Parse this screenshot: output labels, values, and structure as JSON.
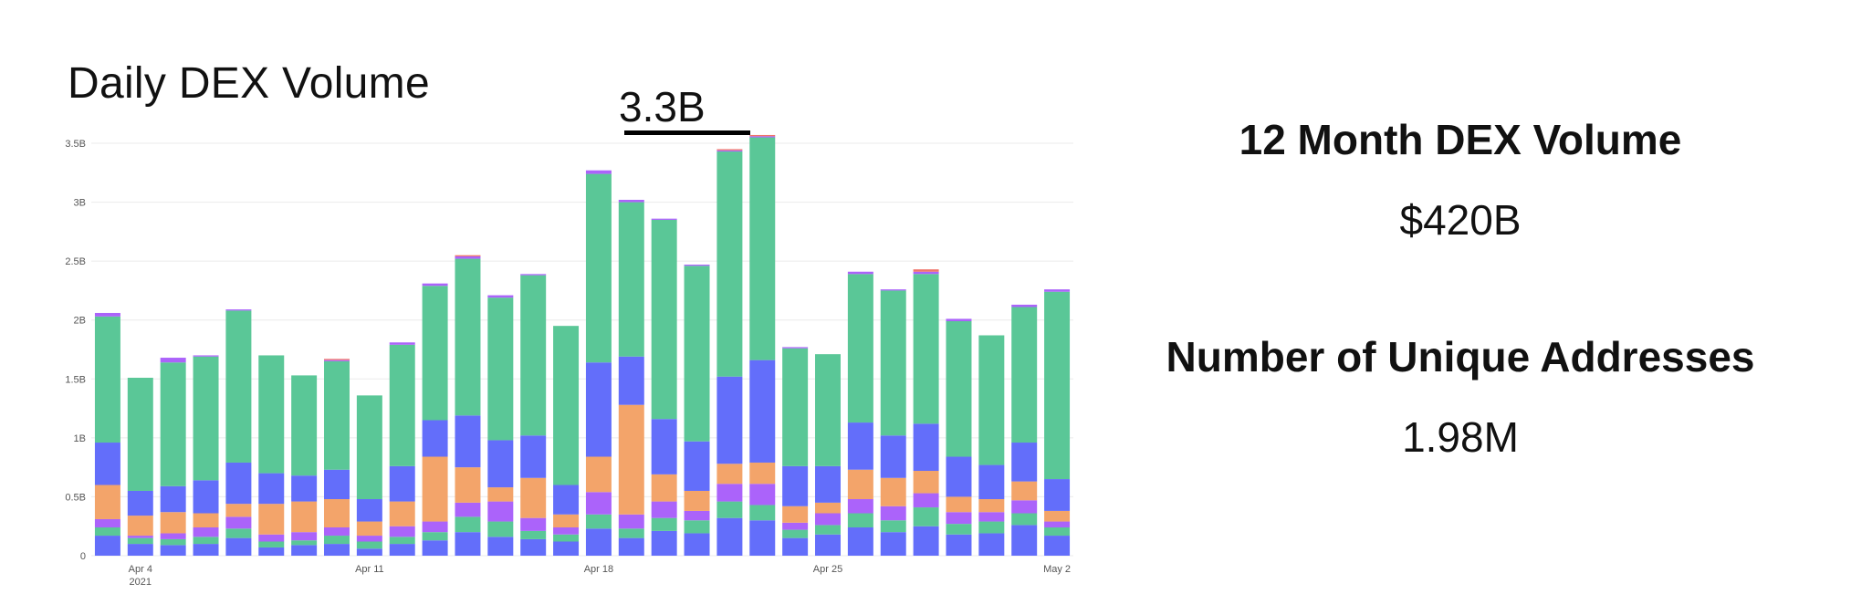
{
  "chart_data": {
    "type": "bar",
    "stacked": true,
    "title": "Daily DEX Volume",
    "annotation": "3.3B",
    "ylim": [
      0,
      3.5
    ],
    "y_ticks": [
      {
        "value": 0,
        "label": "0"
      },
      {
        "value": 0.5,
        "label": "0.5B"
      },
      {
        "value": 1.0,
        "label": "1B"
      },
      {
        "value": 1.5,
        "label": "1.5B"
      },
      {
        "value": 2.0,
        "label": "2B"
      },
      {
        "value": 2.5,
        "label": "2.5B"
      },
      {
        "value": 3.0,
        "label": "3B"
      },
      {
        "value": 3.5,
        "label": "3.5B"
      }
    ],
    "x_ticks": [
      {
        "index": 1,
        "label": "Apr 4",
        "sublabel": "2021"
      },
      {
        "index": 8,
        "label": "Apr 11",
        "sublabel": ""
      },
      {
        "index": 15,
        "label": "Apr 18",
        "sublabel": ""
      },
      {
        "index": 22,
        "label": "Apr 25",
        "sublabel": ""
      },
      {
        "index": 29,
        "label": "May 2",
        "sublabel": ""
      }
    ],
    "grid": true,
    "colors": [
      "#636efa",
      "#5ac797",
      "#ab63fa",
      "#f3a46a",
      "#636efa",
      "#5ac797",
      "#ab63fa",
      "#f0746a"
    ],
    "stacks": [
      [
        0.17,
        0.07,
        0.07,
        0.29,
        0.36,
        1.07,
        0.03,
        0.0
      ],
      [
        0.1,
        0.05,
        0.02,
        0.17,
        0.21,
        0.96,
        0.0,
        0.0
      ],
      [
        0.09,
        0.05,
        0.05,
        0.18,
        0.22,
        1.05,
        0.04,
        0.0
      ],
      [
        0.1,
        0.06,
        0.08,
        0.12,
        0.28,
        1.05,
        0.01,
        0.0
      ],
      [
        0.15,
        0.08,
        0.1,
        0.11,
        0.35,
        1.29,
        0.01,
        0.0
      ],
      [
        0.07,
        0.05,
        0.06,
        0.26,
        0.26,
        1.0,
        0.0,
        0.0
      ],
      [
        0.09,
        0.04,
        0.07,
        0.26,
        0.22,
        0.85,
        0.0,
        0.0
      ],
      [
        0.1,
        0.07,
        0.07,
        0.24,
        0.25,
        0.92,
        0.01,
        0.01
      ],
      [
        0.06,
        0.06,
        0.05,
        0.12,
        0.19,
        0.88,
        0.0,
        0.0
      ],
      [
        0.1,
        0.06,
        0.09,
        0.21,
        0.3,
        1.03,
        0.02,
        0.0
      ],
      [
        0.13,
        0.07,
        0.09,
        0.55,
        0.31,
        1.14,
        0.02,
        0.0
      ],
      [
        0.2,
        0.13,
        0.12,
        0.3,
        0.44,
        1.33,
        0.02,
        0.01
      ],
      [
        0.16,
        0.13,
        0.17,
        0.12,
        0.4,
        1.21,
        0.02,
        0.0
      ],
      [
        0.14,
        0.07,
        0.11,
        0.34,
        0.36,
        1.36,
        0.01,
        0.0
      ],
      [
        0.12,
        0.06,
        0.06,
        0.11,
        0.25,
        1.35,
        0.0,
        0.0
      ],
      [
        0.23,
        0.12,
        0.19,
        0.3,
        0.8,
        1.6,
        0.03,
        0.0
      ],
      [
        0.15,
        0.08,
        0.12,
        0.93,
        0.41,
        1.31,
        0.02,
        0.0
      ],
      [
        0.21,
        0.11,
        0.14,
        0.23,
        0.47,
        1.69,
        0.01,
        0.0
      ],
      [
        0.19,
        0.11,
        0.08,
        0.17,
        0.42,
        1.49,
        0.01,
        0.0
      ],
      [
        0.32,
        0.14,
        0.15,
        0.17,
        0.74,
        1.91,
        0.01,
        0.01
      ],
      [
        0.3,
        0.13,
        0.18,
        0.18,
        0.87,
        1.89,
        0.01,
        0.01
      ],
      [
        0.15,
        0.07,
        0.06,
        0.14,
        0.34,
        1.0,
        0.01,
        0.0
      ],
      [
        0.18,
        0.08,
        0.1,
        0.09,
        0.31,
        0.95,
        0.0,
        0.0
      ],
      [
        0.24,
        0.12,
        0.12,
        0.25,
        0.4,
        1.26,
        0.02,
        0.0
      ],
      [
        0.2,
        0.1,
        0.12,
        0.24,
        0.36,
        1.23,
        0.01,
        0.0
      ],
      [
        0.25,
        0.16,
        0.12,
        0.19,
        0.4,
        1.27,
        0.02,
        0.02
      ],
      [
        0.18,
        0.09,
        0.1,
        0.13,
        0.34,
        1.15,
        0.02,
        0.0
      ],
      [
        0.19,
        0.1,
        0.08,
        0.11,
        0.29,
        1.1,
        0.0,
        0.0
      ],
      [
        0.26,
        0.1,
        0.11,
        0.16,
        0.33,
        1.15,
        0.02,
        0.0
      ],
      [
        0.17,
        0.07,
        0.05,
        0.09,
        0.27,
        1.59,
        0.02,
        0.0
      ]
    ]
  },
  "stats": {
    "volume_title": "12 Month DEX Volume",
    "volume_value": "$420B",
    "addresses_title": "Number of Unique Addresses",
    "addresses_value": "1.98M"
  }
}
